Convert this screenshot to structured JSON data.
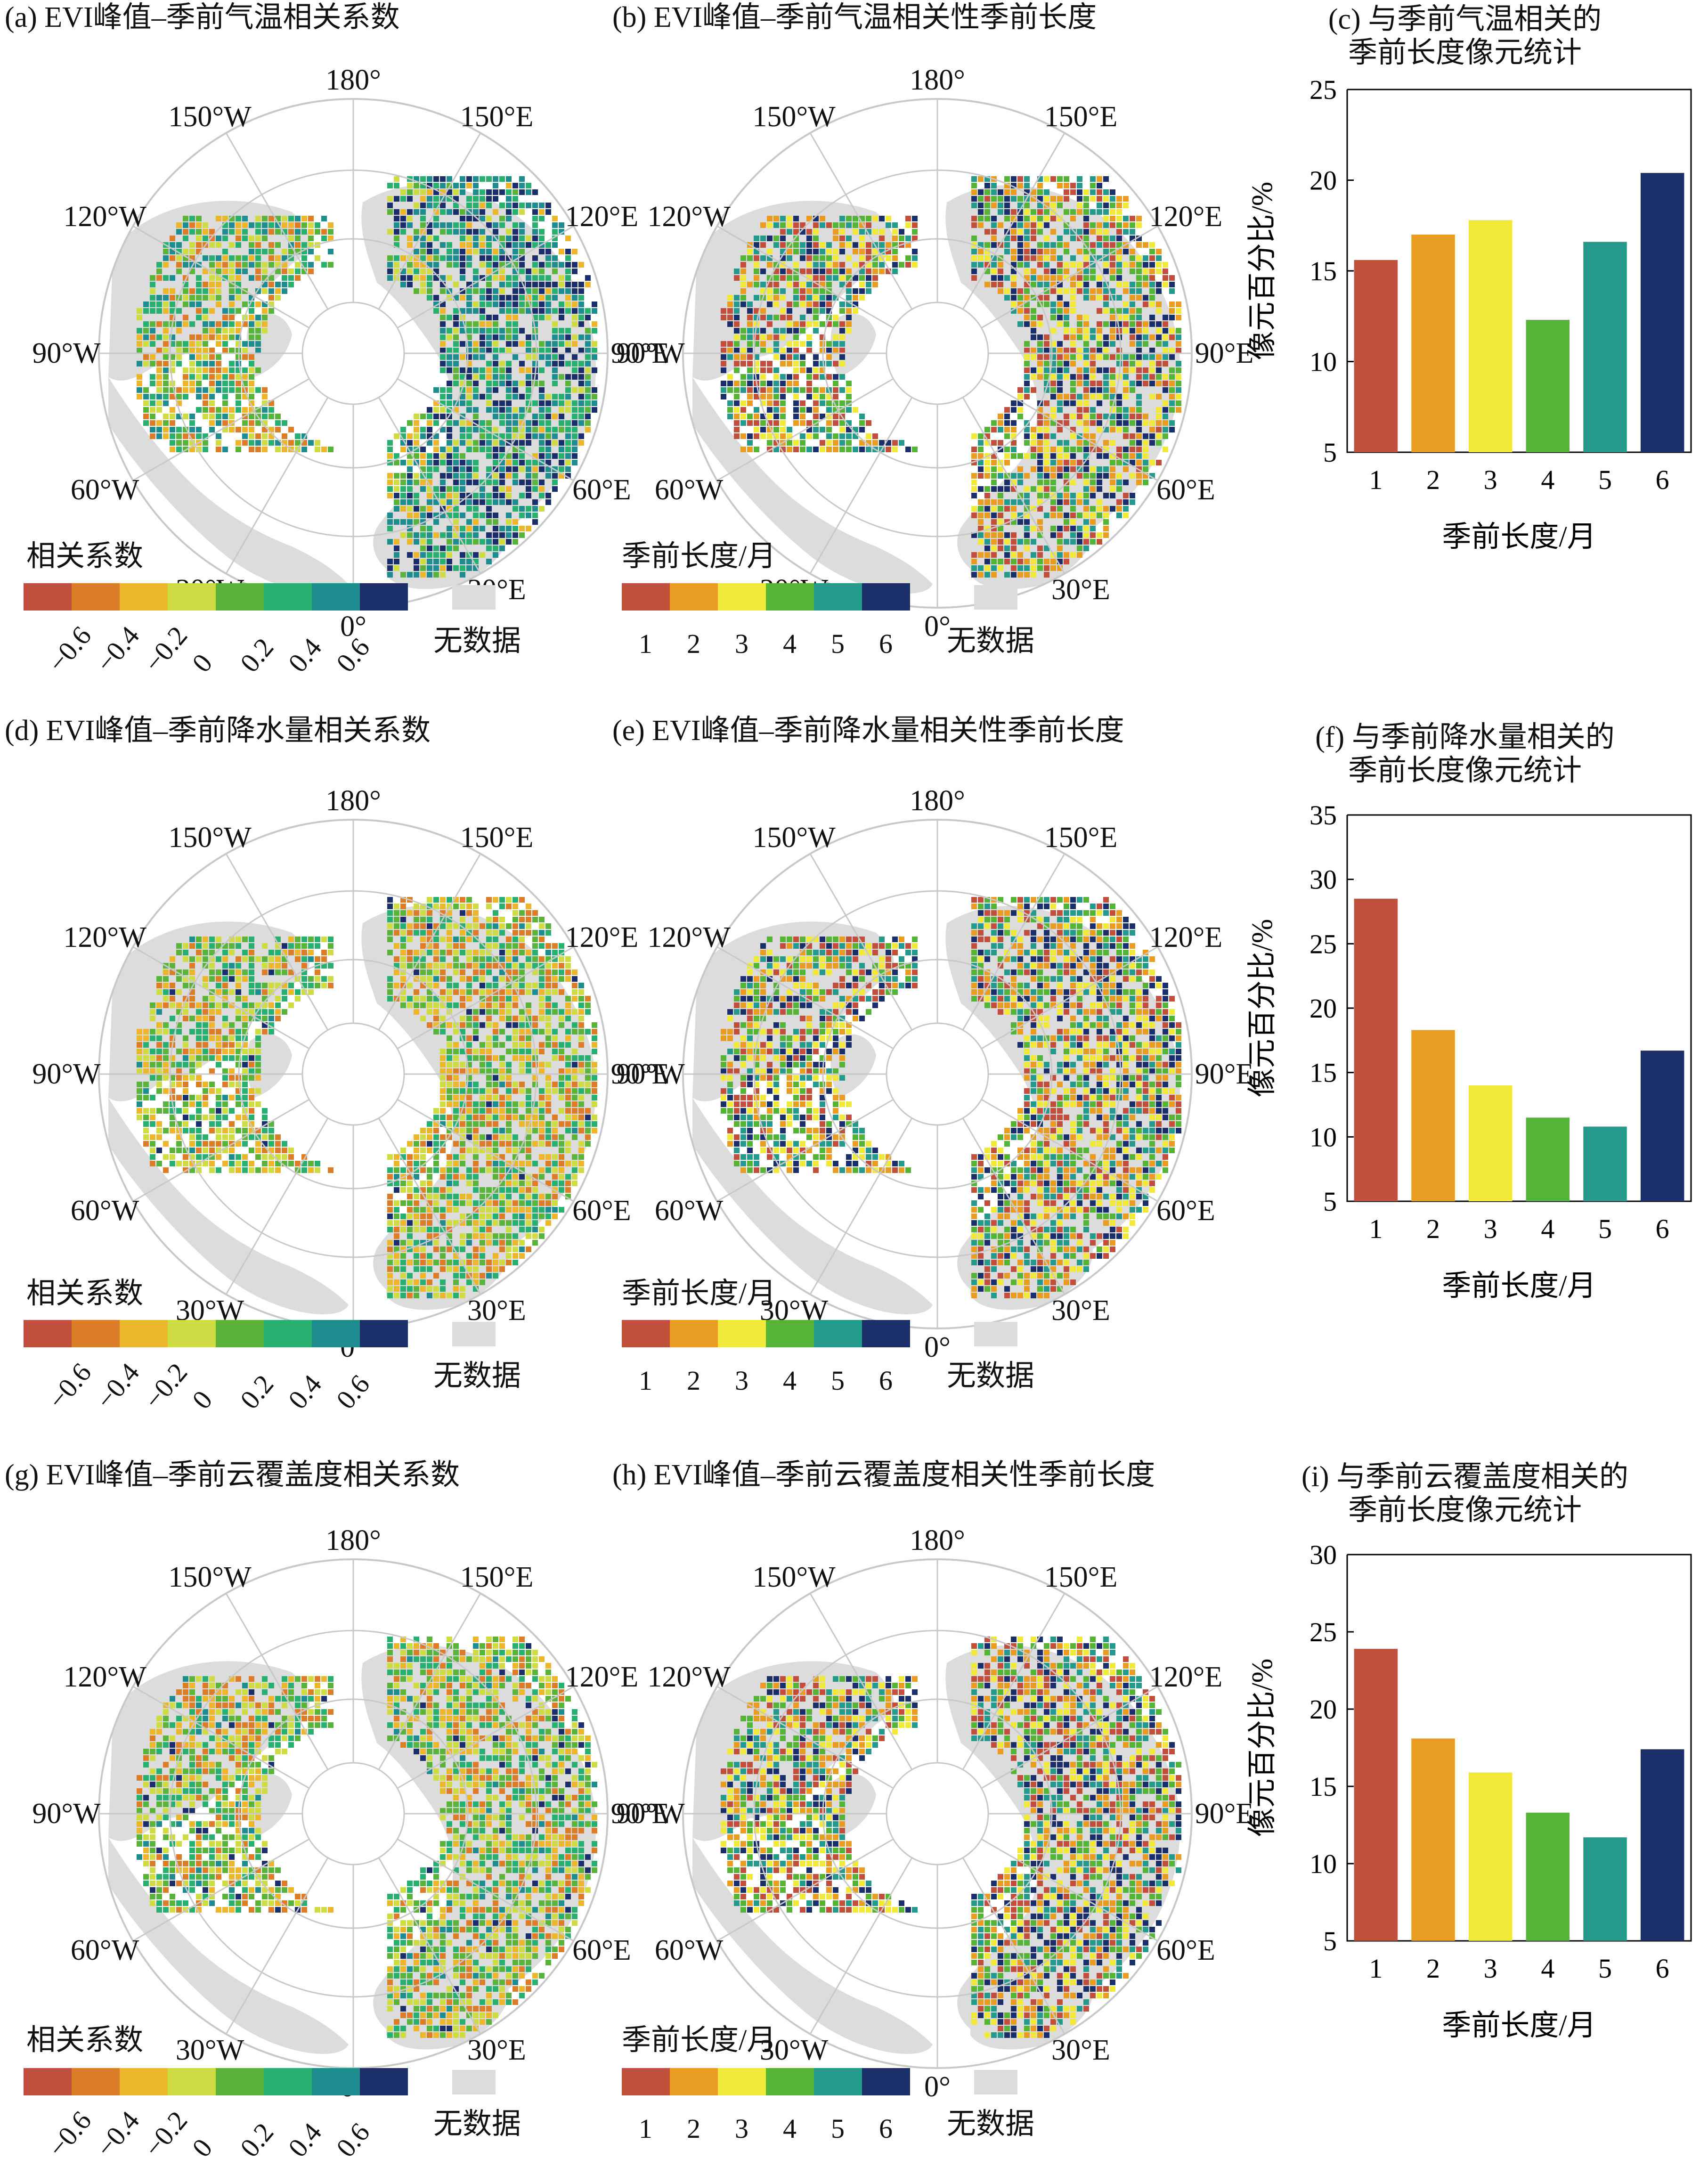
{
  "colors": {
    "corr": [
      "#c0503c",
      "#dc7d2a",
      "#ecb62c",
      "#cfdc44",
      "#5ab43c",
      "#29b070",
      "#1f8c8f",
      "#1b2f6b"
    ],
    "season": [
      "#c0503c",
      "#e89c22",
      "#f1e93a",
      "#55b437",
      "#24998c",
      "#1b2f6b"
    ],
    "nodata": "#dcdcdc",
    "land": "#dcdcdc"
  },
  "maps": [
    {
      "title": "(a) EVI峰值–季前气温相关系数",
      "kind": "corr"
    },
    {
      "title": "(b) EVI峰值–季前气温相关性季前长度",
      "kind": "season"
    },
    {
      "title": "(d) EVI峰值–季前降水量相关系数",
      "kind": "corr"
    },
    {
      "title": "(e) EVI峰值–季前降水量相关性季前长度",
      "kind": "season"
    },
    {
      "title": "(g) EVI峰值–季前云覆盖度相关系数",
      "kind": "corr"
    },
    {
      "title": "(h) EVI峰值–季前云覆盖度相关性季前长度",
      "kind": "season"
    }
  ],
  "map_labels": [
    "180°",
    "150°E",
    "120°E",
    "90°E",
    "60°E",
    "30°E",
    "0°",
    "30°W",
    "60°W",
    "90°W",
    "120°W",
    "150°W"
  ],
  "legends": {
    "corr": {
      "title": "相关系数",
      "ticks": [
        "−0.6",
        "−0.4",
        "−0.2",
        "0",
        "0.2",
        "0.4",
        "0.6"
      ],
      "nodata": "无数据"
    },
    "season": {
      "title": "季前长度/月",
      "ticks": [
        "1",
        "2",
        "3",
        "4",
        "5",
        "6"
      ],
      "nodata": "无数据"
    }
  },
  "chart_data": [
    {
      "type": "bar",
      "title": "(c) 与季前气温相关的\n季前长度像元统计",
      "xlabel": "季前长度/月",
      "ylabel": "像元百分比/%",
      "categories": [
        "1",
        "2",
        "3",
        "4",
        "5",
        "6"
      ],
      "values": [
        15.6,
        17.0,
        17.8,
        12.3,
        16.6,
        20.4
      ],
      "ylim": [
        5,
        25
      ],
      "yticks": [
        "5",
        "10",
        "15",
        "20",
        "25"
      ]
    },
    {
      "type": "bar",
      "title": "(f) 与季前降水量相关的\n季前长度像元统计",
      "xlabel": "季前长度/月",
      "ylabel": "像元百分比/%",
      "categories": [
        "1",
        "2",
        "3",
        "4",
        "5",
        "6"
      ],
      "values": [
        28.5,
        18.3,
        14.0,
        11.5,
        10.8,
        16.7
      ],
      "ylim": [
        5,
        35
      ],
      "yticks": [
        "5",
        "10",
        "15",
        "20",
        "25",
        "30",
        "35"
      ]
    },
    {
      "type": "bar",
      "title": "(i) 与季前云覆盖度相关的\n季前长度像元统计",
      "xlabel": "季前长度/月",
      "ylabel": "像元百分比/%",
      "categories": [
        "1",
        "2",
        "3",
        "4",
        "5",
        "6"
      ],
      "values": [
        23.9,
        18.1,
        15.9,
        13.3,
        11.7,
        17.4
      ],
      "ylim": [
        5,
        30
      ],
      "yticks": [
        "5",
        "10",
        "15",
        "20",
        "25",
        "30"
      ]
    }
  ]
}
